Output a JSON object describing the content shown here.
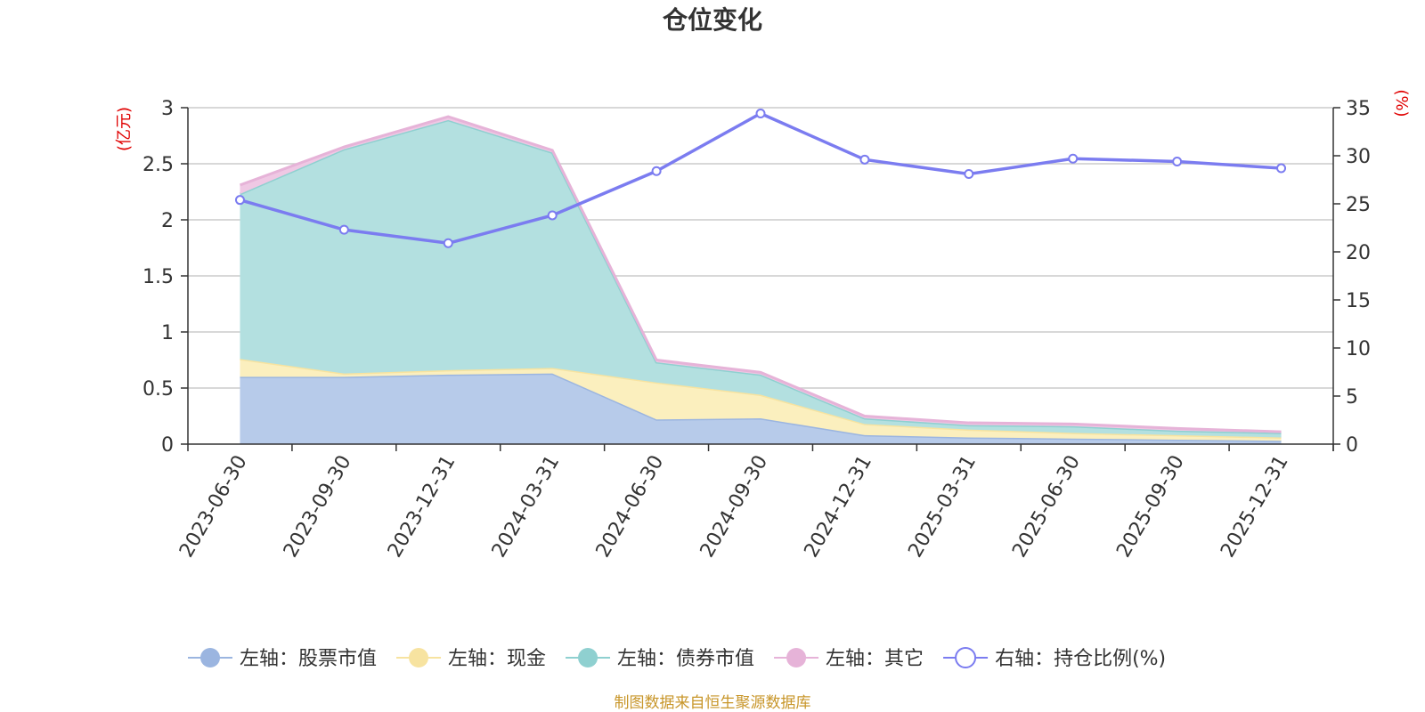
{
  "chart_data": {
    "type": "area",
    "title": "仓位变化",
    "categories": [
      "2023-06-30",
      "2023-09-30",
      "2023-12-31",
      "2024-03-31",
      "2024-06-30",
      "2024-09-30",
      "2024-12-31",
      "2025-03-31",
      "2025-06-30",
      "2025-09-30",
      "2025-12-31"
    ],
    "left_axis": {
      "unit": "(亿元)",
      "ylim": [
        0,
        3
      ],
      "ticks": [
        "0",
        "0.5",
        "1",
        "1.5",
        "2",
        "2.5",
        "3"
      ],
      "tick_values": [
        0,
        0.5,
        1,
        1.5,
        2,
        2.5,
        3
      ]
    },
    "right_axis": {
      "unit": "(%)",
      "ylim": [
        0,
        35
      ],
      "ticks": [
        "0",
        "5",
        "10",
        "15",
        "20",
        "25",
        "30",
        "35"
      ],
      "tick_values": [
        0,
        5,
        10,
        15,
        20,
        25,
        30,
        35
      ]
    },
    "stacked_series": [
      {
        "name": "左轴：股票市值",
        "color": "#9bb5e0",
        "fill": "#b7cbea",
        "values": [
          0.6,
          0.6,
          0.62,
          0.63,
          0.22,
          0.23,
          0.08,
          0.06,
          0.05,
          0.04,
          0.03
        ]
      },
      {
        "name": "左轴：现金",
        "color": "#f7e3a0",
        "fill": "#fbefbe",
        "values": [
          0.16,
          0.03,
          0.04,
          0.05,
          0.33,
          0.21,
          0.1,
          0.07,
          0.05,
          0.04,
          0.03
        ]
      },
      {
        "name": "左轴：债券市值",
        "color": "#8fd0d0",
        "fill": "#b3e0e0",
        "values": [
          1.47,
          2.0,
          2.23,
          1.92,
          0.18,
          0.18,
          0.05,
          0.04,
          0.06,
          0.04,
          0.04
        ]
      },
      {
        "name": "左轴：其它",
        "color": "#e6b3d8",
        "fill": "#efc8e4",
        "values": [
          0.08,
          0.02,
          0.03,
          0.02,
          0.02,
          0.02,
          0.02,
          0.02,
          0.02,
          0.02,
          0.01
        ]
      }
    ],
    "line_series": {
      "name": "右轴：持仓比例(%)",
      "color": "#7b7cf0",
      "values": [
        25.4,
        22.3,
        20.9,
        23.8,
        28.4,
        34.4,
        29.6,
        28.1,
        29.7,
        29.4,
        28.7
      ]
    },
    "source": "制图数据来自恒生聚源数据库"
  }
}
